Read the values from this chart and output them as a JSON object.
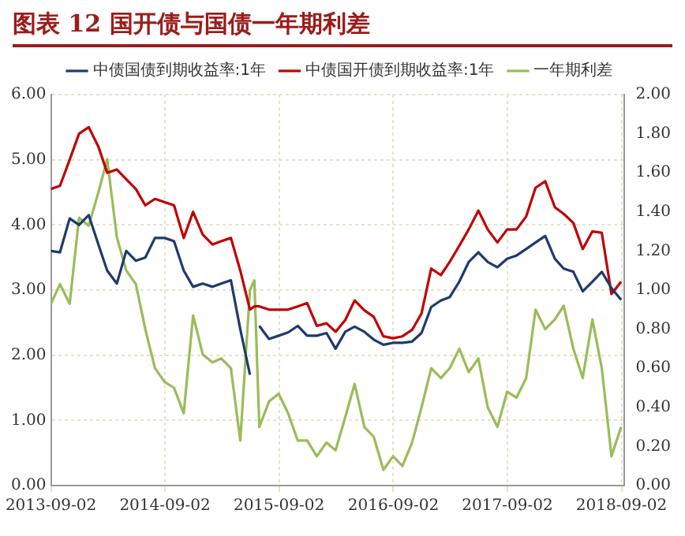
{
  "chart_data": {
    "type": "line",
    "title": "图表 12 国开债与国债一年期利差",
    "x": [
      "2013-09-02",
      "2013-10",
      "2013-11",
      "2013-12",
      "2014-01",
      "2014-02",
      "2014-03",
      "2014-04",
      "2014-05",
      "2014-06",
      "2014-07",
      "2014-08",
      "2014-09",
      "2014-10",
      "2014-11",
      "2014-12",
      "2015-01",
      "2015-02",
      "2015-03",
      "2015-04",
      "2015-05",
      "2015-06",
      "2015-06-15",
      "2015-07",
      "2015-08",
      "2015-09",
      "2015-10",
      "2015-11",
      "2015-12",
      "2016-01",
      "2016-02",
      "2016-03",
      "2016-04",
      "2016-05",
      "2016-06",
      "2016-07",
      "2016-08",
      "2016-09",
      "2016-10",
      "2016-11",
      "2016-12",
      "2017-01",
      "2017-02",
      "2017-03",
      "2017-04",
      "2017-05",
      "2017-06",
      "2017-07",
      "2017-08",
      "2017-09",
      "2017-10",
      "2017-11",
      "2017-12",
      "2018-01",
      "2018-02",
      "2018-03",
      "2018-04",
      "2018-05",
      "2018-06",
      "2018-07",
      "2018-08",
      "2018-09"
    ],
    "series": [
      {
        "name": "中债国债到期收益率:1年",
        "color": "#1f3a6e",
        "values": [
          3.6,
          3.58,
          4.1,
          4.0,
          4.15,
          3.7,
          3.3,
          3.1,
          3.6,
          3.45,
          3.5,
          3.8,
          3.8,
          3.75,
          3.3,
          3.05,
          3.1,
          3.05,
          3.1,
          3.15,
          2.4,
          1.7,
          null,
          2.45,
          2.25,
          2.3,
          2.35,
          2.45,
          2.3,
          2.3,
          2.34,
          2.1,
          2.36,
          2.44,
          2.36,
          2.24,
          2.16,
          2.19,
          2.19,
          2.21,
          2.34,
          2.74,
          2.84,
          2.89,
          3.13,
          3.43,
          3.58,
          3.43,
          3.35,
          3.48,
          3.53,
          3.63,
          3.73,
          3.83,
          3.48,
          3.33,
          3.28,
          2.98,
          3.13,
          3.28,
          3.03,
          2.85
        ]
      },
      {
        "name": "中债国开债到期收益率:1年",
        "color": "#c00000",
        "values": [
          4.55,
          4.6,
          5.0,
          5.4,
          5.5,
          5.2,
          4.8,
          4.85,
          4.7,
          4.55,
          4.3,
          4.4,
          4.35,
          4.3,
          3.8,
          4.2,
          3.85,
          3.7,
          3.75,
          3.8,
          3.3,
          2.7,
          2.75,
          2.75,
          2.7,
          2.7,
          2.7,
          2.75,
          2.8,
          2.45,
          2.49,
          2.36,
          2.54,
          2.84,
          2.69,
          2.59,
          2.29,
          2.26,
          2.29,
          2.39,
          2.64,
          3.33,
          3.23,
          3.43,
          3.68,
          3.93,
          4.22,
          3.93,
          3.73,
          3.93,
          3.93,
          4.13,
          4.57,
          4.67,
          4.27,
          4.17,
          4.03,
          3.63,
          3.9,
          3.88,
          2.94,
          3.13
        ]
      },
      {
        "name": "一年期利差",
        "color": "#9bbb59",
        "axis": "y2",
        "values": [
          0.93,
          1.03,
          0.93,
          1.37,
          1.33,
          1.5,
          1.67,
          1.27,
          1.1,
          1.03,
          0.8,
          0.6,
          0.53,
          0.5,
          0.37,
          0.87,
          0.67,
          0.63,
          0.65,
          0.6,
          0.23,
          1.0,
          1.05,
          0.3,
          0.43,
          0.47,
          0.37,
          0.23,
          0.23,
          0.15,
          0.22,
          0.18,
          0.35,
          0.52,
          0.3,
          0.25,
          0.08,
          0.15,
          0.1,
          0.22,
          0.4,
          0.6,
          0.55,
          0.6,
          0.7,
          0.58,
          0.65,
          0.4,
          0.3,
          0.48,
          0.45,
          0.55,
          0.9,
          0.8,
          0.85,
          0.92,
          0.7,
          0.55,
          0.85,
          0.6,
          0.15,
          0.3
        ]
      }
    ],
    "xlim": [
      "2013-09-02",
      "2018-09-12"
    ],
    "xticks": [
      "2013-09-02",
      "2014-09-02",
      "2015-09-02",
      "2016-09-02",
      "2017-09-02",
      "2018-09-02"
    ],
    "ylim": [
      0,
      6
    ],
    "yticks": [
      {
        "value": 0,
        "label": "0.00"
      },
      {
        "value": 1,
        "label": "1.00"
      },
      {
        "value": 2,
        "label": "2.00"
      },
      {
        "value": 3,
        "label": "3.00"
      },
      {
        "value": 4,
        "label": "4.00"
      },
      {
        "value": 5,
        "label": "5.00"
      },
      {
        "value": 6,
        "label": "6.00"
      }
    ],
    "y2lim": [
      0,
      2
    ],
    "y2ticks": [
      {
        "value": 0,
        "label": "0.00"
      },
      {
        "value": 0.2,
        "label": "0.20"
      },
      {
        "value": 0.4,
        "label": "0.40"
      },
      {
        "value": 0.6,
        "label": "0.60"
      },
      {
        "value": 0.8,
        "label": "0.80"
      },
      {
        "value": 1,
        "label": "1.00"
      },
      {
        "value": 1.2,
        "label": "1.20"
      },
      {
        "value": 1.4,
        "label": "1.40"
      },
      {
        "value": 1.6,
        "label": "1.60"
      },
      {
        "value": 1.8,
        "label": "1.80"
      },
      {
        "value": 2,
        "label": "2.00"
      }
    ],
    "grid": true,
    "legend": "top",
    "marker": "none",
    "line_style": "solid"
  }
}
